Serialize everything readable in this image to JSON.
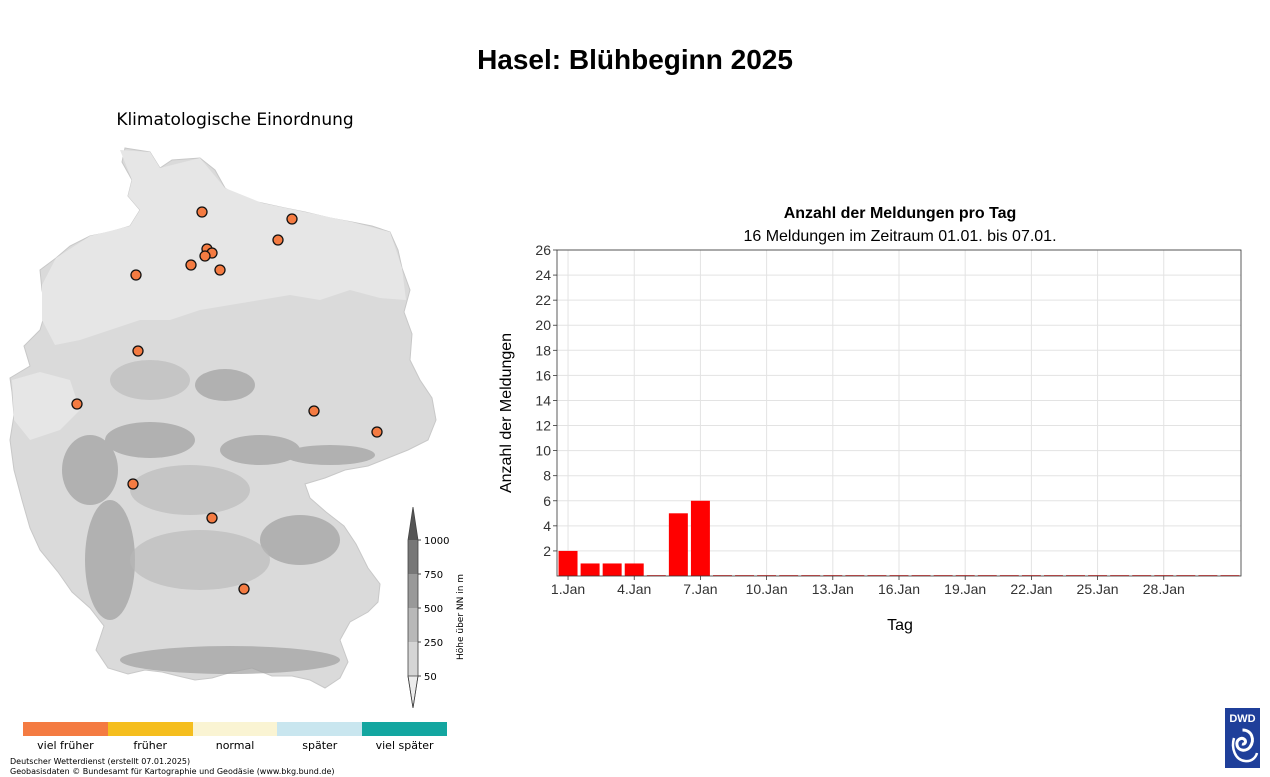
{
  "title": "Hasel: Blühbeginn 2025",
  "map": {
    "title": "Klimatologische Einordnung",
    "elevation_scale": {
      "label": "Höhe über NN in m",
      "ticks": [
        "1000",
        "750",
        "500",
        "250",
        "50"
      ]
    }
  },
  "legend": {
    "items": [
      {
        "label": "viel früher",
        "color": "#f47b42"
      },
      {
        "label": "früher",
        "color": "#f5be1e"
      },
      {
        "label": "normal",
        "color": "#faf4d3"
      },
      {
        "label": "später",
        "color": "#c9e6ef"
      },
      {
        "label": "viel später",
        "color": "#13a6a0"
      }
    ]
  },
  "footer": {
    "line1": "Deutscher Wetterdienst (erstellt 07.01.2025)",
    "line2": "Geobasisdaten © Bundesamt für Kartographie und Geodäsie (www.bkg.bund.de)"
  },
  "logo": {
    "text": "DWD",
    "color": "#1f3f9a"
  },
  "chart_data": {
    "type": "bar",
    "title": "Anzahl der Meldungen pro Tag",
    "subtitle": "16 Meldungen im Zeitraum 01.01. bis 07.01.",
    "xlabel": "Tag",
    "ylabel": "Anzahl der Meldungen",
    "ylim": [
      0,
      26
    ],
    "yticks": [
      2,
      4,
      6,
      8,
      10,
      12,
      14,
      16,
      18,
      20,
      22,
      24,
      26
    ],
    "xlim": [
      1,
      31
    ],
    "xticks": [
      {
        "day": 1,
        "label": "1.Jan"
      },
      {
        "day": 4,
        "label": "4.Jan"
      },
      {
        "day": 7,
        "label": "7.Jan"
      },
      {
        "day": 10,
        "label": "10.Jan"
      },
      {
        "day": 13,
        "label": "13.Jan"
      },
      {
        "day": 16,
        "label": "16.Jan"
      },
      {
        "day": 19,
        "label": "19.Jan"
      },
      {
        "day": 22,
        "label": "22.Jan"
      },
      {
        "day": 25,
        "label": "25.Jan"
      },
      {
        "day": 28,
        "label": "28.Jan"
      }
    ],
    "days": [
      1,
      2,
      3,
      4,
      5,
      6,
      7,
      8,
      9,
      10,
      11,
      12,
      13,
      14,
      15,
      16,
      17,
      18,
      19,
      20,
      21,
      22,
      23,
      24,
      25,
      26,
      27,
      28,
      29,
      30,
      31
    ],
    "values": [
      2,
      1,
      1,
      1,
      0,
      5,
      6,
      0,
      0,
      0,
      0,
      0,
      0,
      0,
      0,
      0,
      0,
      0,
      0,
      0,
      0,
      0,
      0,
      0,
      0,
      0,
      0,
      0,
      0,
      0,
      0
    ],
    "bar_color": "#ff0000",
    "grid": true
  }
}
